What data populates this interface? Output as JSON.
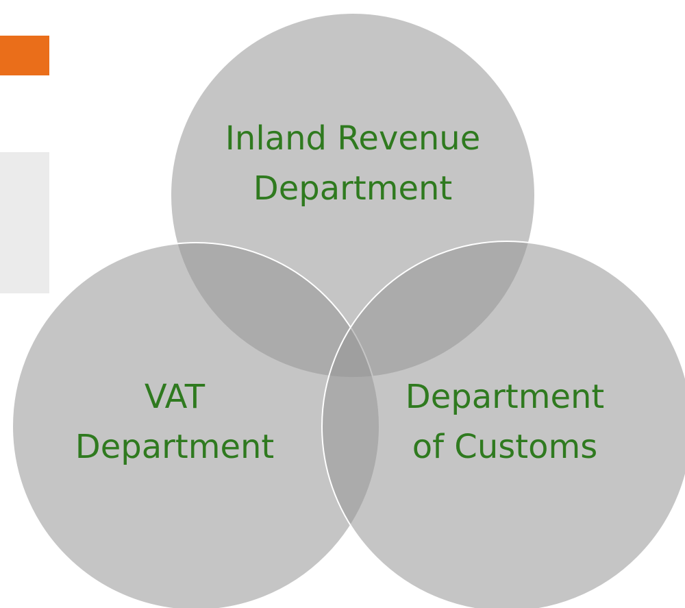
{
  "nodes": [
    {
      "lines": [
        "Inland Revenue",
        "Department"
      ]
    },
    {
      "lines": [
        "VAT",
        "Department"
      ]
    },
    {
      "lines": [
        "Department",
        "of Customs"
      ]
    }
  ]
}
